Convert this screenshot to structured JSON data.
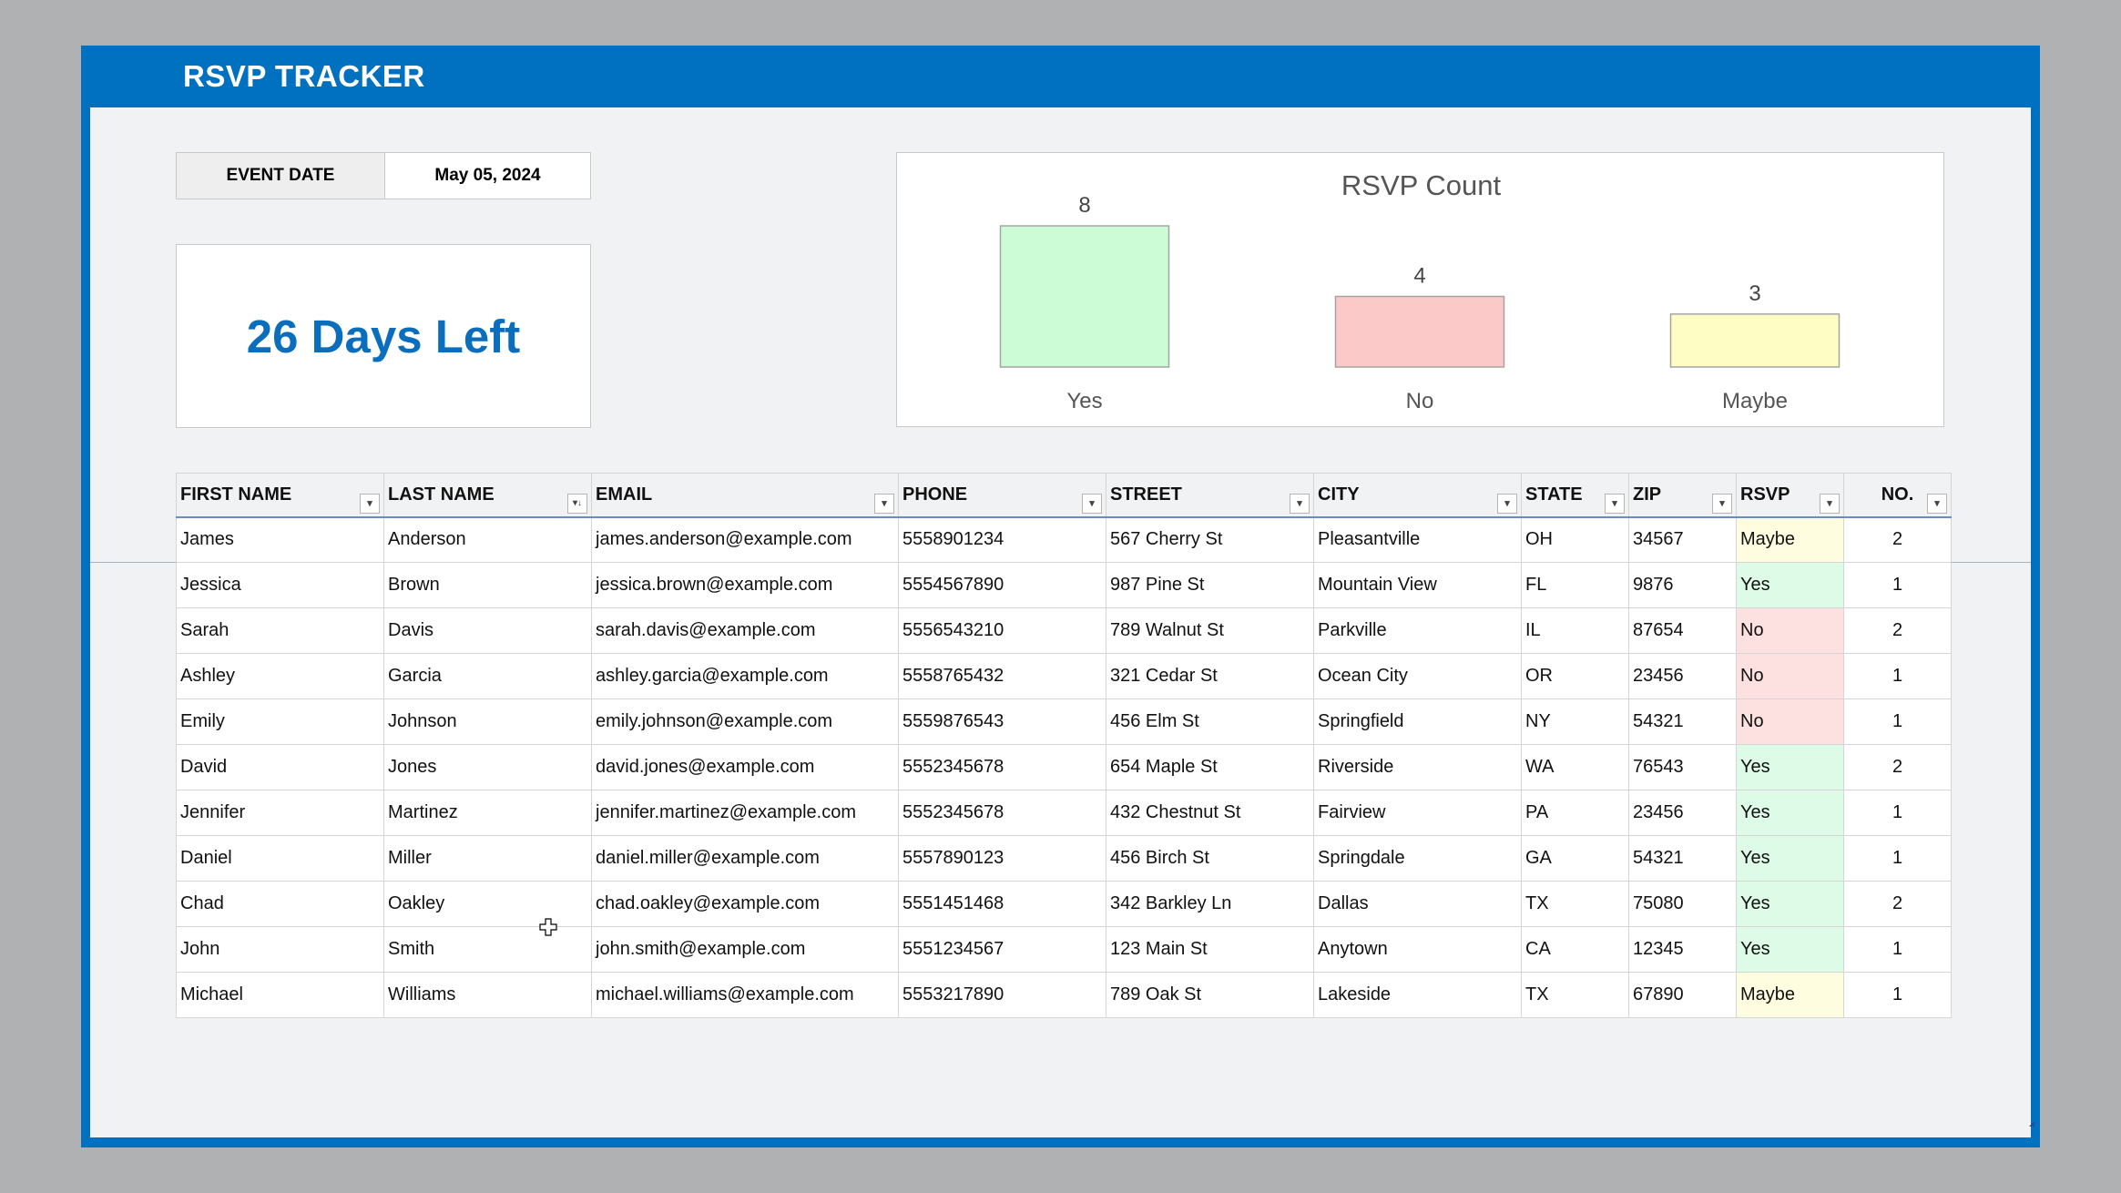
{
  "app": {
    "title": "RSVP TRACKER"
  },
  "event": {
    "date_label": "EVENT DATE",
    "date_value": "May 05, 2024",
    "days_left": "26 Days Left"
  },
  "colors": {
    "title_bar": "#0070c0",
    "days_left_text": "#0a6ebd",
    "yes": "#ccfcd6",
    "no": "#fcc9c9",
    "maybe": "#fdfdc4"
  },
  "chart_data": {
    "type": "bar",
    "title": "RSVP Count",
    "categories": [
      "Yes",
      "No",
      "Maybe"
    ],
    "values": [
      8,
      4,
      3
    ],
    "data_labels": [
      "8",
      "4",
      "3"
    ],
    "colors": [
      "#ccfcd6",
      "#fcc9c9",
      "#fdfdc4"
    ],
    "grid": false,
    "legend": "none"
  },
  "table": {
    "headers": [
      "FIRST NAME",
      "LAST NAME",
      "EMAIL",
      "PHONE",
      "STREET",
      "CITY",
      "STATE",
      "ZIP",
      "RSVP",
      "NO."
    ],
    "rows": [
      [
        "James",
        "Anderson",
        "james.anderson@example.com",
        "5558901234",
        "567 Cherry St",
        "Pleasantville",
        "OH",
        "34567",
        "Maybe",
        "2"
      ],
      [
        "Jessica",
        "Brown",
        "jessica.brown@example.com",
        "5554567890",
        "987 Pine St",
        "Mountain View",
        "FL",
        "9876",
        "Yes",
        "1"
      ],
      [
        "Sarah",
        "Davis",
        "sarah.davis@example.com",
        "5556543210",
        "789 Walnut St",
        "Parkville",
        "IL",
        "87654",
        "No",
        "2"
      ],
      [
        "Ashley",
        "Garcia",
        "ashley.garcia@example.com",
        "5558765432",
        "321 Cedar St",
        "Ocean City",
        "OR",
        "23456",
        "No",
        "1"
      ],
      [
        "Emily",
        "Johnson",
        "emily.johnson@example.com",
        "5559876543",
        "456 Elm St",
        "Springfield",
        "NY",
        "54321",
        "No",
        "1"
      ],
      [
        "David",
        "Jones",
        "david.jones@example.com",
        "5552345678",
        "654 Maple St",
        "Riverside",
        "WA",
        "76543",
        "Yes",
        "2"
      ],
      [
        "Jennifer",
        "Martinez",
        "jennifer.martinez@example.com",
        "5552345678",
        "432 Chestnut St",
        "Fairview",
        "PA",
        "23456",
        "Yes",
        "1"
      ],
      [
        "Daniel",
        "Miller",
        "daniel.miller@example.com",
        "5557890123",
        "456 Birch St",
        "Springdale",
        "GA",
        "54321",
        "Yes",
        "1"
      ],
      [
        "Chad",
        "Oakley",
        "chad.oakley@example.com",
        "5551451468",
        "342 Barkley Ln",
        "Dallas",
        "TX",
        "75080",
        "Yes",
        "2"
      ],
      [
        "John",
        "Smith",
        "john.smith@example.com",
        "5551234567",
        "123 Main St",
        "Anytown",
        "CA",
        "12345",
        "Yes",
        "1"
      ],
      [
        "Michael",
        "Williams",
        "michael.williams@example.com",
        "5553217890",
        "789 Oak St",
        "Lakeside",
        "TX",
        "67890",
        "Maybe",
        "1"
      ]
    ],
    "sorted_column": "LAST NAME",
    "filter_icon": "dropdown-arrow-icon",
    "sorted_icon": "sort-filter-icon"
  }
}
